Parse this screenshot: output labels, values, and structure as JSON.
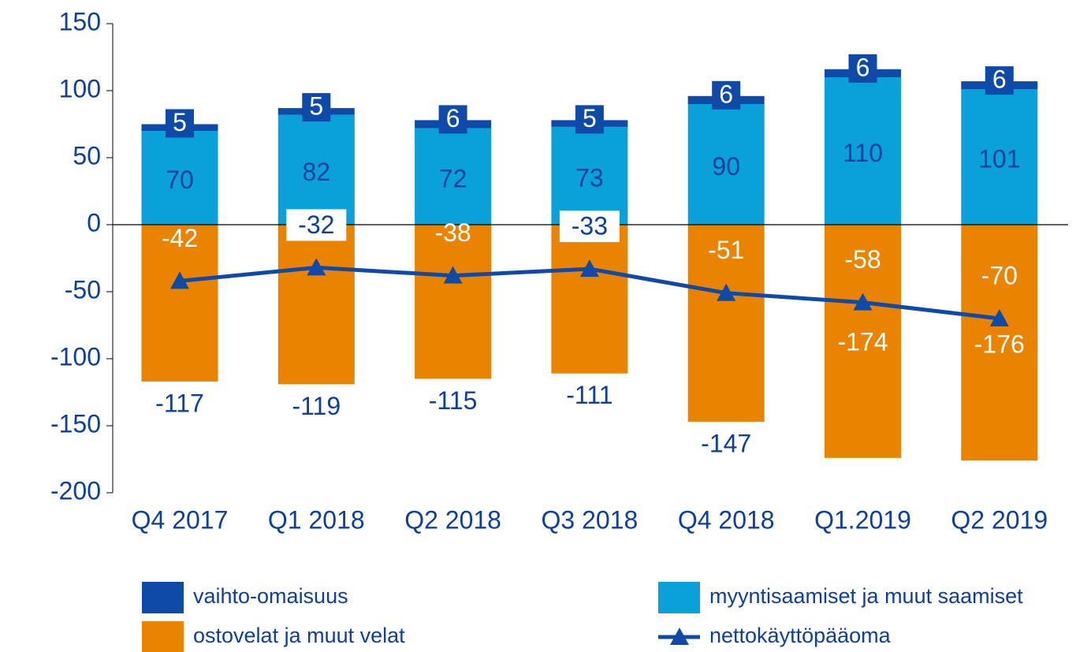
{
  "chart_data": {
    "type": "bar",
    "categories": [
      "Q4 2017",
      "Q1 2018",
      "Q2 2018",
      "Q3 2018",
      "Q4 2018",
      "Q1.2019",
      "Q2 2019"
    ],
    "series": [
      {
        "name": "vaihto-omaisuus",
        "color": "#0f4aa8",
        "values": [
          5,
          5,
          6,
          5,
          6,
          6,
          6
        ]
      },
      {
        "name": "myyntisaamiset ja muut saamiset",
        "color": "#0aa0da",
        "values": [
          70,
          82,
          72,
          73,
          90,
          110,
          101
        ]
      },
      {
        "name": "ostovelat ja muut velat",
        "color": "#ea8400",
        "values": [
          -117,
          -119,
          -115,
          -111,
          -147,
          -174,
          -176
        ]
      },
      {
        "name": "nettokäyttöpääoma",
        "color": "#0f4aa8",
        "type": "line",
        "values": [
          -42,
          -32,
          -38,
          -33,
          -51,
          -58,
          -70
        ]
      }
    ],
    "ylim": [
      -200,
      150
    ],
    "yticks": [
      -200,
      -150,
      -100,
      -50,
      0,
      50,
      100,
      150
    ]
  }
}
